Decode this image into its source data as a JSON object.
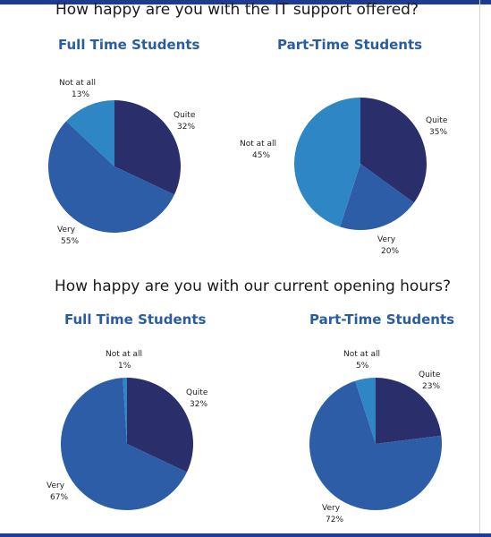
{
  "questions": [
    "How happy are you with the IT support offered?",
    "How happy are you with our current opening hours?"
  ],
  "chart_data": [
    {
      "type": "pie",
      "question": "How happy are you with the IT support offered?",
      "title": "Full Time Students",
      "slices": [
        {
          "label": "Quite",
          "value": 32,
          "value_label": "32%",
          "color": "#2a2f6b"
        },
        {
          "label": "Very",
          "value": 55,
          "value_label": "55%",
          "color": "#2d5da6"
        },
        {
          "label": "Not at all",
          "value": 13,
          "value_label": "13%",
          "color": "#2e87c4"
        }
      ]
    },
    {
      "type": "pie",
      "question": "How happy are you with the IT support offered?",
      "title": "Part-Time Students",
      "slices": [
        {
          "label": "Quite",
          "value": 35,
          "value_label": "35%",
          "color": "#2a2f6b"
        },
        {
          "label": "Very",
          "value": 20,
          "value_label": "20%",
          "color": "#2d5da6"
        },
        {
          "label": "Not at all",
          "value": 45,
          "value_label": "45%",
          "color": "#2e87c4"
        }
      ]
    },
    {
      "type": "pie",
      "question": "How happy are you with our current opening hours?",
      "title": "Full Time Students",
      "slices": [
        {
          "label": "Quite",
          "value": 32,
          "value_label": "32%",
          "color": "#2a2f6b"
        },
        {
          "label": "Very",
          "value": 67,
          "value_label": "67%",
          "color": "#2d5da6"
        },
        {
          "label": "Not at all",
          "value": 1,
          "value_label": "1%",
          "color": "#2e87c4"
        }
      ]
    },
    {
      "type": "pie",
      "question": "How happy are you with our current opening hours?",
      "title": "Part-Time Students",
      "slices": [
        {
          "label": "Quite",
          "value": 23,
          "value_label": "23%",
          "color": "#2a2f6b"
        },
        {
          "label": "Very",
          "value": 72,
          "value_label": "72%",
          "color": "#2d5da6"
        },
        {
          "label": "Not at all",
          "value": 5,
          "value_label": "5%",
          "color": "#2e87c4"
        }
      ]
    }
  ]
}
